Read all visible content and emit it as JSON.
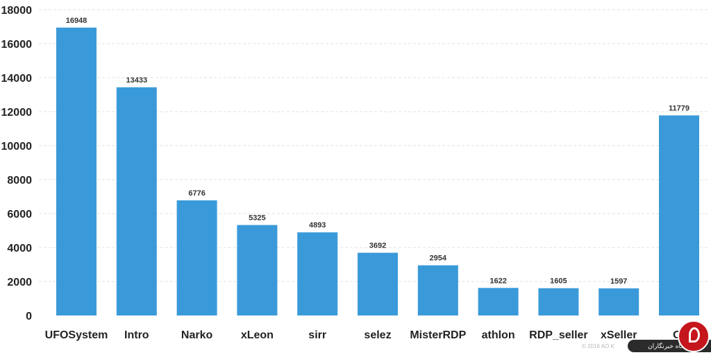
{
  "chart_data": {
    "type": "bar",
    "categories": [
      "UFOSystem",
      "Intro",
      "Narko",
      "xLeon",
      "sirr",
      "selez",
      "MisterRDP",
      "athlon",
      "RDP_seller",
      "xSeller",
      "Ot"
    ],
    "values": [
      16948,
      13433,
      6776,
      5325,
      4893,
      3692,
      2954,
      1622,
      1605,
      1597,
      11779
    ],
    "data_labels": [
      "16948",
      "13433",
      "6776",
      "5325",
      "4893",
      "3692",
      "2954",
      "1622",
      "1605",
      "1597",
      "11779"
    ],
    "yticks": [
      "0",
      "2000",
      "4000",
      "6000",
      "8000",
      "10000",
      "12000",
      "14000",
      "16000",
      "18000"
    ],
    "ylim": [
      0,
      18000
    ],
    "grid": true,
    "bar_color": "#3a9ad9",
    "title": "",
    "xlabel": "",
    "ylabel": ""
  },
  "footer": {
    "copyright": "© 2016 AO K"
  },
  "watermark": {
    "text": "باشگاه خبرنگاران",
    "colors": {
      "circle": "#c4161c",
      "bar": "#2b2b2b"
    }
  }
}
